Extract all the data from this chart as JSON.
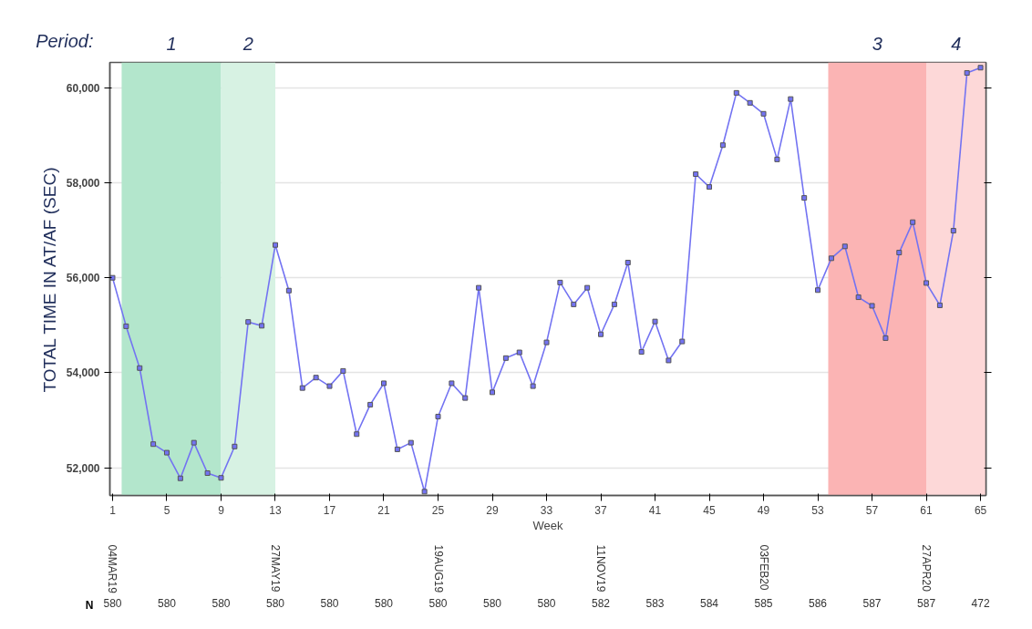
{
  "chart_data": {
    "type": "line",
    "xlabel": "Week",
    "ylabel": "TOTAL TIME IN AT/AF (SEC)",
    "x": [
      1,
      2,
      3,
      4,
      5,
      6,
      7,
      8,
      9,
      10,
      11,
      12,
      13,
      14,
      15,
      16,
      17,
      18,
      19,
      20,
      21,
      22,
      23,
      24,
      25,
      26,
      27,
      28,
      29,
      30,
      31,
      32,
      33,
      34,
      35,
      36,
      37,
      38,
      39,
      40,
      41,
      42,
      43,
      44,
      45,
      46,
      47,
      48,
      49,
      50,
      51,
      52,
      53,
      54,
      55,
      56,
      57,
      58,
      59,
      60,
      61,
      62,
      63,
      64,
      65
    ],
    "series": [
      {
        "color": "#7373f2",
        "values": [
          56000,
          54980,
          54100,
          52500,
          52320,
          51780,
          52530,
          51890,
          51790,
          52450,
          55070,
          54990,
          56690,
          55730,
          53680,
          53900,
          53720,
          54040,
          52710,
          53330,
          53780,
          52390,
          52530,
          51500,
          53080,
          53780,
          53470,
          55790,
          53590,
          54310,
          54430,
          53720,
          54640,
          55900,
          55440,
          55790,
          54810,
          55440,
          56320,
          54440,
          55080,
          54260,
          54660,
          58180,
          57910,
          58790,
          59890,
          59680,
          59450,
          58490,
          59760,
          57680,
          55740,
          56410,
          56660,
          55590,
          55410,
          54730,
          56530,
          57170,
          55890,
          55420,
          56990,
          60310,
          60420
        ]
      }
    ],
    "xlim": [
      0.8,
      65.4
    ],
    "xticks": [
      1,
      5,
      9,
      13,
      17,
      21,
      25,
      29,
      33,
      37,
      41,
      45,
      49,
      53,
      57,
      61,
      65
    ],
    "ylim": [
      51420,
      60530
    ],
    "yticks": [
      {
        "value": 52000,
        "label": "52,000"
      },
      {
        "value": 54000,
        "label": "54,000"
      },
      {
        "value": 56000,
        "label": "56,000"
      },
      {
        "value": 58000,
        "label": "58,000"
      },
      {
        "value": 60000,
        "label": "60,000"
      }
    ],
    "grid": "y",
    "marker": "square",
    "line_style": "solid",
    "bands": [
      {
        "axis": "x",
        "from": 1.67,
        "to": 9,
        "label": "1",
        "color": "#b3e6cc"
      },
      {
        "axis": "x",
        "from": 9,
        "to": 13,
        "label": "2",
        "color": "#d7f2e3"
      },
      {
        "axis": "x",
        "from": 53.77,
        "to": 61,
        "label": "3",
        "color": "#fbb4b4"
      },
      {
        "axis": "x",
        "from": 61,
        "to": 65.4,
        "label": "4",
        "color": "#fdd8d8"
      }
    ],
    "annotations": [
      "Period:",
      "04MAR19",
      "27MAY19",
      "19AUG19",
      "11NOV19",
      "03FEB20",
      "27APR20",
      "N",
      "580",
      "580",
      "580",
      "580",
      "580",
      "580",
      "580",
      "580",
      "580",
      "582",
      "583",
      "584",
      "585",
      "586",
      "587",
      "587",
      "472"
    ]
  }
}
